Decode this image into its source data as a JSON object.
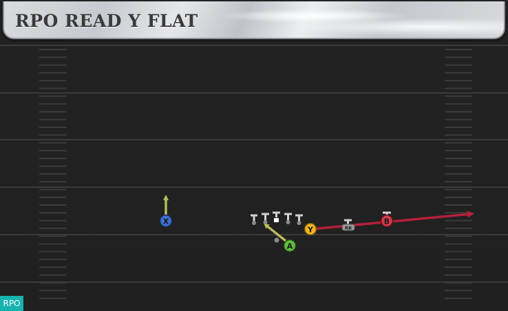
{
  "play": {
    "title": "RPO READ Y FLAT",
    "tag": "RPO"
  },
  "players": [
    {
      "id": "X",
      "label": "X",
      "color": "#3b6fd1"
    },
    {
      "id": "A",
      "label": "A",
      "color": "#5fbf3f"
    },
    {
      "id": "Y",
      "label": "Y",
      "color": "#f0b41f"
    },
    {
      "id": "B",
      "label": "B",
      "color": "#d63a48"
    },
    {
      "id": "RB",
      "label": "RB",
      "color": "#9a9a9a"
    }
  ],
  "routes": {
    "X": "#b8ba5c",
    "A": "#b8ba5c",
    "B": "#b3203a"
  }
}
